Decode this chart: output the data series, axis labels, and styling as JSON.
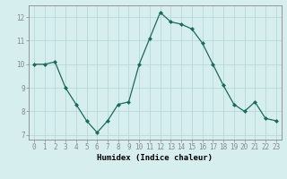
{
  "x": [
    0,
    1,
    2,
    3,
    4,
    5,
    6,
    7,
    8,
    9,
    10,
    11,
    12,
    13,
    14,
    15,
    16,
    17,
    18,
    19,
    20,
    21,
    22,
    23
  ],
  "y": [
    10.0,
    10.0,
    10.1,
    9.0,
    8.3,
    7.6,
    7.1,
    7.6,
    8.3,
    8.4,
    10.0,
    11.1,
    12.2,
    11.8,
    11.7,
    11.5,
    10.9,
    10.0,
    9.1,
    8.3,
    8.0,
    8.4,
    7.7,
    7.6
  ],
  "xlabel": "Humidex (Indice chaleur)",
  "ylim": [
    6.8,
    12.5
  ],
  "xlim": [
    -0.5,
    23.5
  ],
  "yticks": [
    7,
    8,
    9,
    10,
    11,
    12
  ],
  "xticks": [
    0,
    1,
    2,
    3,
    4,
    5,
    6,
    7,
    8,
    9,
    10,
    11,
    12,
    13,
    14,
    15,
    16,
    17,
    18,
    19,
    20,
    21,
    22,
    23
  ],
  "line_color": "#1a6b5a",
  "marker": "D",
  "marker_size": 2.0,
  "bg_color": "#d6eeee",
  "grid_color": "#b8d8d8",
  "tick_fontsize": 5.5,
  "label_fontsize": 6.5,
  "spine_color": "#888888"
}
